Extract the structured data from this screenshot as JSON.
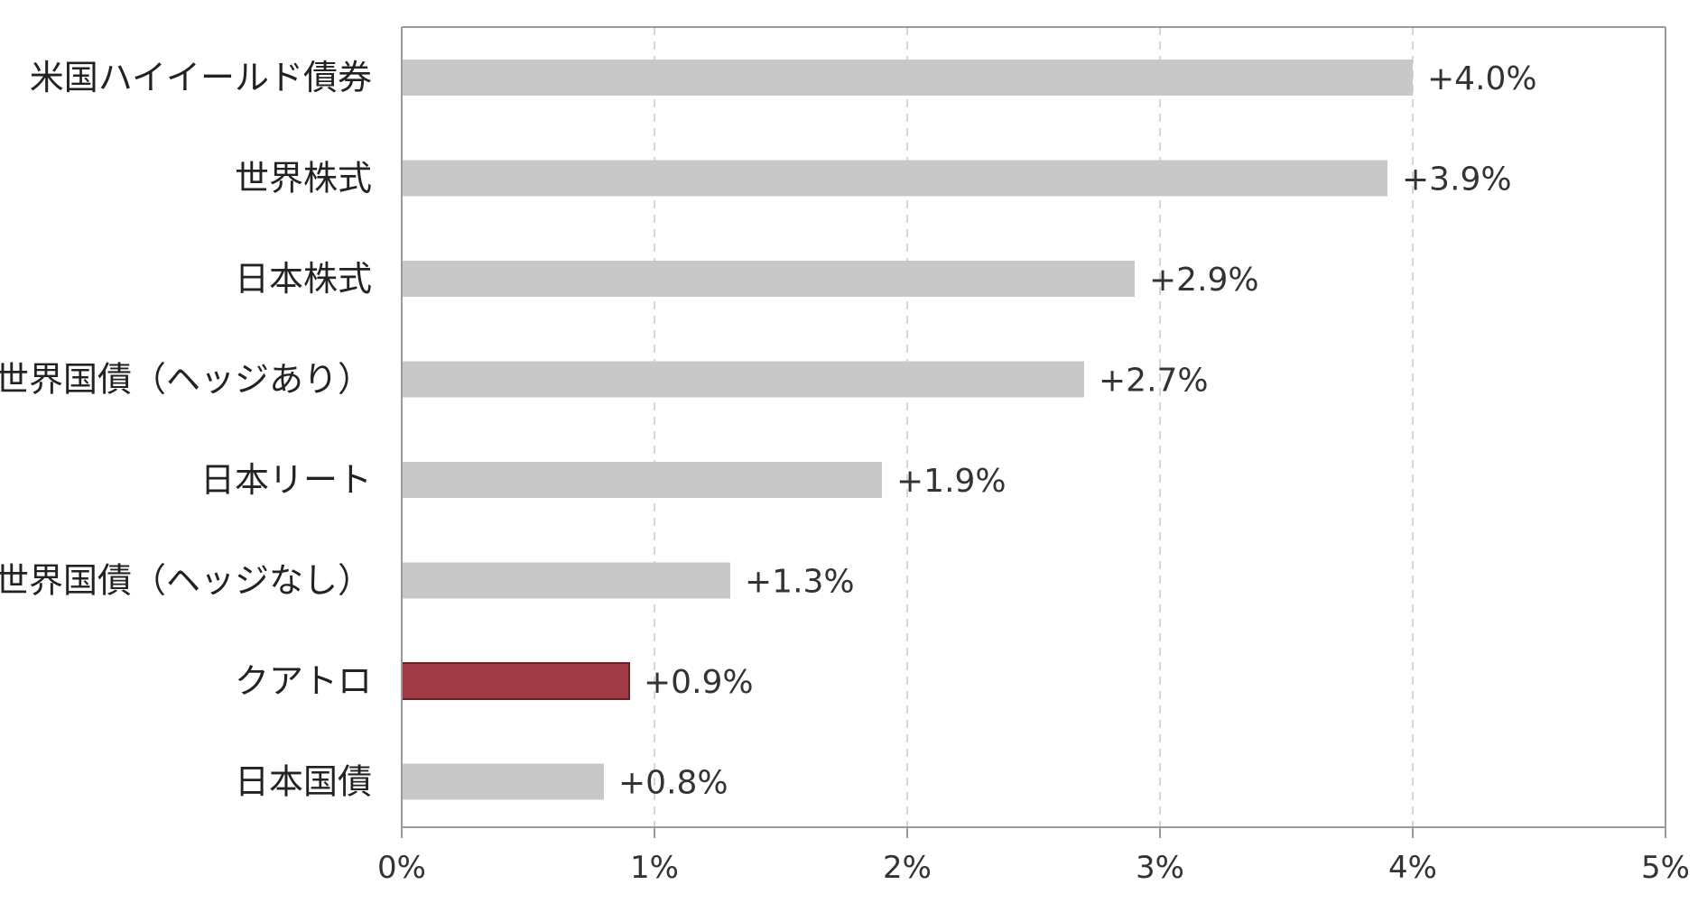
{
  "chart_data": {
    "type": "bar",
    "orientation": "horizontal",
    "categories": [
      "米国ハイイールド債券",
      "世界株式",
      "日本株式",
      "世界国債（ヘッジあり）",
      "日本リート",
      "世界国債（ヘッジなし）",
      "クアトロ",
      "日本国債"
    ],
    "values": [
      4.0,
      3.9,
      2.9,
      2.7,
      1.9,
      1.3,
      0.9,
      0.8
    ],
    "value_labels": [
      "+4.0%",
      "+3.9%",
      "+2.9%",
      "+2.7%",
      "+1.9%",
      "+1.3%",
      "+0.9%",
      "+0.8%"
    ],
    "highlight_index": 6,
    "xlim": [
      0,
      5
    ],
    "xticks": [
      0,
      1,
      2,
      3,
      4,
      5
    ],
    "xtick_labels": [
      "0%",
      "1%",
      "2%",
      "3%",
      "4%",
      "5%"
    ],
    "title": "",
    "xlabel": "",
    "ylabel": "",
    "grid": "vertical dashed",
    "legend": "none",
    "colors": {
      "bar": "#c8c8c8",
      "highlight": "#a03c46",
      "highlight_label": "#9a343e",
      "grid": "#d6d6d6",
      "axis": "#9a9a9a",
      "text": "#222222"
    }
  }
}
